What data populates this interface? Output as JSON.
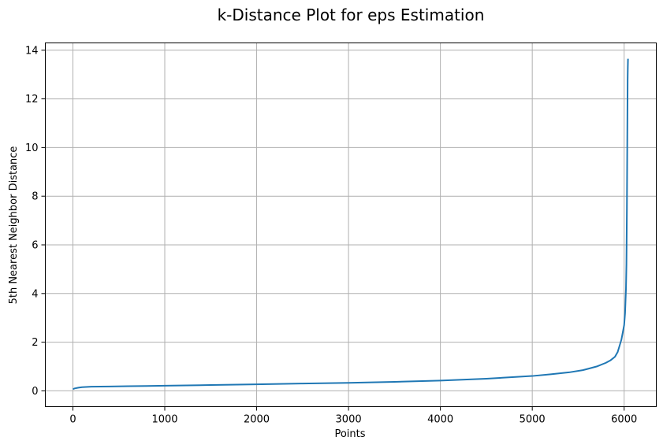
{
  "chart_data": {
    "type": "line",
    "title": "k-Distance Plot for eps Estimation",
    "xlabel": "Points",
    "ylabel": "5th Nearest Neighbor Distance",
    "xlim": [
      -300,
      6350
    ],
    "ylim": [
      -0.65,
      14.3
    ],
    "xticks": [
      0,
      1000,
      2000,
      3000,
      4000,
      5000,
      6000
    ],
    "yticks": [
      0,
      2,
      4,
      6,
      8,
      10,
      12,
      14
    ],
    "grid": true,
    "legend": "none",
    "color": "#1f77b4",
    "series": [
      {
        "x": [
          0,
          20,
          60,
          100,
          200,
          400,
          600,
          800,
          1000,
          1500,
          2000,
          2500,
          3000,
          3500,
          4000,
          4500,
          5000,
          5200,
          5400,
          5550,
          5600,
          5700,
          5800,
          5850,
          5900,
          5930,
          5950,
          5970,
          5990,
          6000,
          6010,
          6020,
          6025,
          6030,
          6033,
          6036,
          6038,
          6040,
          6042
        ],
        "y": [
          0.07,
          0.1,
          0.13,
          0.15,
          0.17,
          0.18,
          0.19,
          0.2,
          0.21,
          0.24,
          0.27,
          0.3,
          0.33,
          0.37,
          0.42,
          0.5,
          0.61,
          0.68,
          0.76,
          0.85,
          0.9,
          1.0,
          1.15,
          1.25,
          1.4,
          1.6,
          1.85,
          2.1,
          2.5,
          2.7,
          3.2,
          4.2,
          5.2,
          7.5,
          9.5,
          11.5,
          12.8,
          13.3,
          13.65
        ]
      }
    ]
  }
}
